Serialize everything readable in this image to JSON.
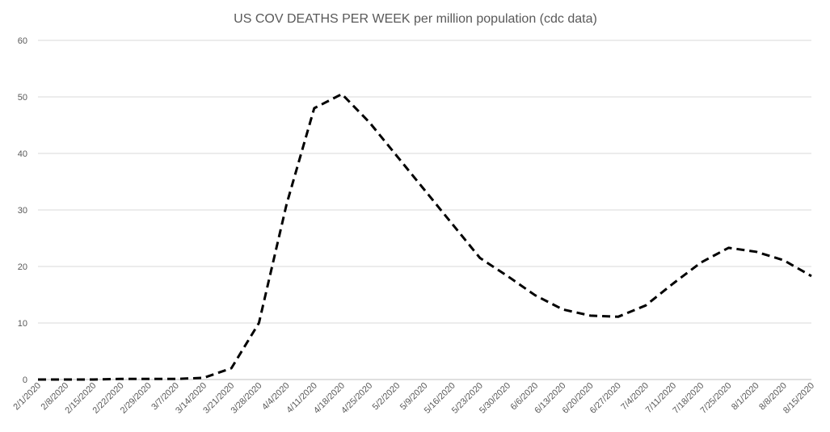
{
  "chart_data": {
    "type": "line",
    "title": "US COV DEATHS PER WEEK per million population (cdc data)",
    "xlabel": "",
    "ylabel": "",
    "ylim": [
      0,
      60
    ],
    "yticks": [
      0,
      10,
      20,
      30,
      40,
      50,
      60
    ],
    "grid": true,
    "legend": "none",
    "categories": [
      "2/1/2020",
      "2/8/2020",
      "2/15/2020",
      "2/22/2020",
      "2/29/2020",
      "3/7/2020",
      "3/14/2020",
      "3/21/2020",
      "3/28/2020",
      "4/4/2020",
      "4/11/2020",
      "4/18/2020",
      "4/25/2020",
      "5/2/2020",
      "5/9/2020",
      "5/16/2020",
      "5/23/2020",
      "5/30/2020",
      "6/6/2020",
      "6/13/2020",
      "6/20/2020",
      "6/27/2020",
      "7/4/2020",
      "7/11/2020",
      "7/18/2020",
      "7/25/2020",
      "8/1/2020",
      "8/8/2020",
      "8/15/2020"
    ],
    "series": [
      {
        "name": "US COV deaths per week per million",
        "color": "#000000",
        "style": "dashed",
        "values": [
          0,
          0,
          0,
          0.1,
          0.1,
          0.1,
          0.3,
          2,
          10,
          31,
          48,
          50.5,
          45.5,
          39.5,
          33.5,
          27.5,
          21.5,
          18.3,
          14.9,
          12.4,
          11.3,
          11.1,
          13.1,
          17,
          20.7,
          23.3,
          22.6,
          21.1,
          18.3
        ]
      }
    ]
  }
}
